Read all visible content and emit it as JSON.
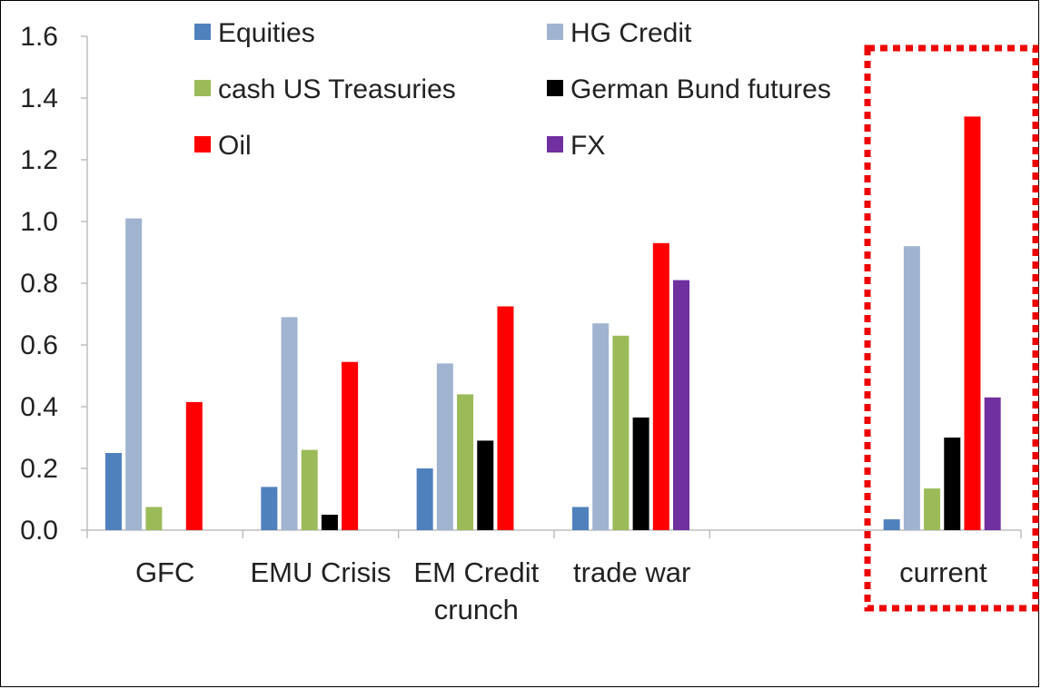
{
  "chart_data": {
    "type": "bar",
    "categories": [
      [
        "GFC"
      ],
      [
        "EMU Crisis"
      ],
      [
        "EM Credit",
        "crunch"
      ],
      [
        "trade war"
      ],
      [
        ""
      ],
      [
        "current"
      ]
    ],
    "ylim": [
      0,
      1.6
    ],
    "yticks": [
      "0.0",
      "0.2",
      "0.4",
      "0.6",
      "0.8",
      "1.0",
      "1.2",
      "1.4",
      "1.6"
    ],
    "grid": false,
    "legend_position": "top",
    "highlight": {
      "category": "current",
      "style": "red dotted box",
      "color": "#ee0000"
    },
    "series": [
      {
        "name": "Equities",
        "color": "#4f81bd",
        "values": [
          0.25,
          0.14,
          0.2,
          0.075,
          null,
          0.035
        ]
      },
      {
        "name": "HG Credit",
        "color": "#a0b4cf",
        "values": [
          1.01,
          0.69,
          0.54,
          0.67,
          null,
          0.92
        ]
      },
      {
        "name": "cash US Treasuries",
        "color": "#9bbb59",
        "values": [
          0.075,
          0.26,
          0.44,
          0.63,
          null,
          0.135
        ]
      },
      {
        "name": "German Bund futures",
        "color": "#000000",
        "values": [
          null,
          0.05,
          0.29,
          0.365,
          null,
          0.3
        ]
      },
      {
        "name": "Oil",
        "color": "#ff0000",
        "values": [
          0.415,
          0.545,
          0.725,
          0.93,
          null,
          1.34
        ]
      },
      {
        "name": "FX",
        "color": "#7030a0",
        "values": [
          null,
          null,
          null,
          0.81,
          null,
          0.43
        ]
      }
    ]
  }
}
